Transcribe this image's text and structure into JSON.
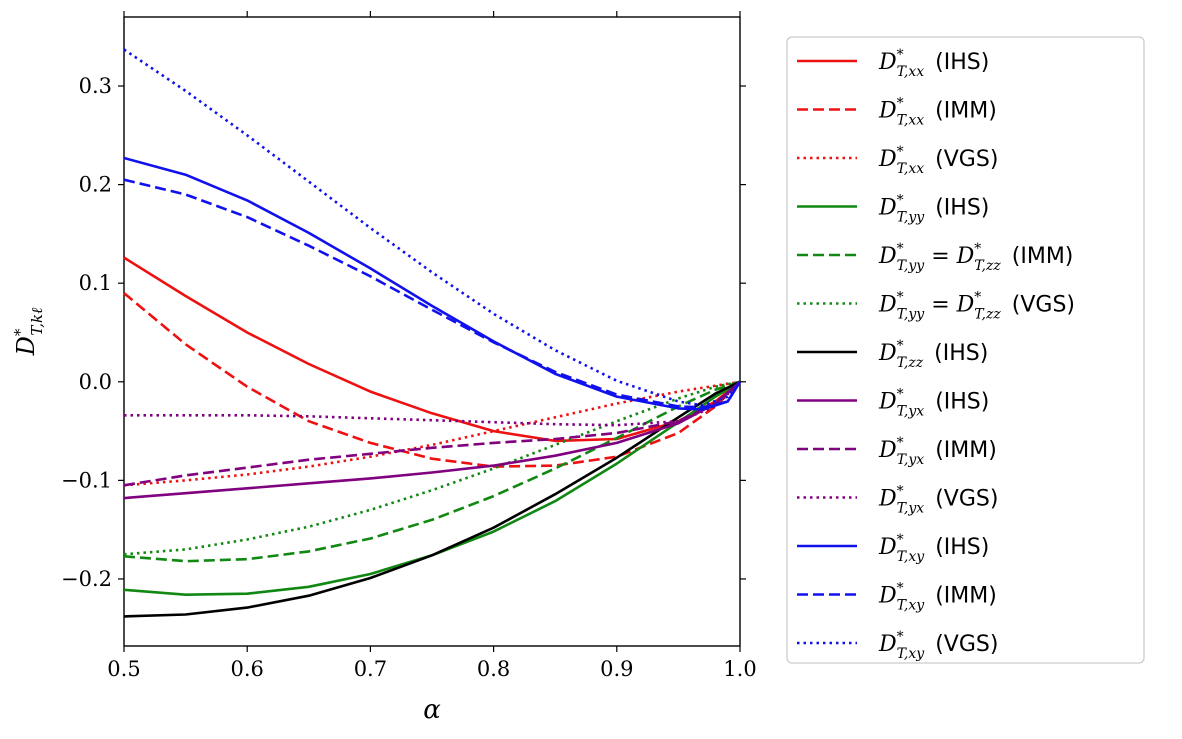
{
  "chart_data": {
    "type": "line",
    "title": "",
    "xlabel": "α",
    "ylabel": "D*T,kℓ",
    "xlim": [
      0.5,
      1.0
    ],
    "ylim": [
      -0.268,
      0.37
    ],
    "x_ticks": [
      "0.5",
      "0.6",
      "0.7",
      "0.8",
      "0.9",
      "1.0"
    ],
    "y_ticks": [
      "−0.2",
      "−0.1",
      "0.0",
      "0.1",
      "0.2",
      "0.3"
    ],
    "legend_position": "outside-right",
    "series": [
      {
        "name": "D*T,xx (IHS)",
        "sym": "D",
        "sub": "T,xx",
        "tag": "(IHS)",
        "color": "#ee1111",
        "dash": "solid",
        "x": [
          0.5,
          0.55,
          0.6,
          0.65,
          0.7,
          0.75,
          0.8,
          0.85,
          0.9,
          0.95,
          0.98,
          1.0
        ],
        "y": [
          0.126,
          0.087,
          0.05,
          0.018,
          -0.01,
          -0.032,
          -0.05,
          -0.06,
          -0.058,
          -0.04,
          -0.02,
          0.0
        ]
      },
      {
        "name": "D*T,xx (IMM)",
        "sym": "D",
        "sub": "T,xx",
        "tag": "(IMM)",
        "color": "#ee1111",
        "dash": "dashed",
        "x": [
          0.5,
          0.55,
          0.6,
          0.65,
          0.7,
          0.75,
          0.8,
          0.85,
          0.9,
          0.95,
          0.98,
          1.0
        ],
        "y": [
          0.09,
          0.038,
          -0.005,
          -0.04,
          -0.062,
          -0.078,
          -0.086,
          -0.085,
          -0.076,
          -0.052,
          -0.025,
          0.0
        ]
      },
      {
        "name": "D*T,xx (VGS)",
        "sym": "D",
        "sub": "T,xx",
        "tag": "(VGS)",
        "color": "#ee1111",
        "dash": "dotted",
        "x": [
          0.5,
          0.55,
          0.6,
          0.65,
          0.7,
          0.75,
          0.8,
          0.85,
          0.9,
          0.95,
          1.0
        ],
        "y": [
          -0.105,
          -0.1,
          -0.094,
          -0.086,
          -0.076,
          -0.064,
          -0.05,
          -0.036,
          -0.022,
          -0.01,
          0.0
        ]
      },
      {
        "name": "D*T,yy (IHS)",
        "sym": "D",
        "sub": "T,yy",
        "tag": "(IHS)",
        "color": "#118811",
        "dash": "solid",
        "x": [
          0.5,
          0.55,
          0.6,
          0.65,
          0.7,
          0.75,
          0.8,
          0.85,
          0.9,
          0.95,
          0.98,
          1.0
        ],
        "y": [
          -0.211,
          -0.216,
          -0.215,
          -0.208,
          -0.195,
          -0.176,
          -0.152,
          -0.121,
          -0.083,
          -0.041,
          -0.015,
          0.0
        ]
      },
      {
        "name": "D*T,yy = D*T,zz (IMM)",
        "sym": "D",
        "sub": "T,yy",
        "eq": true,
        "tag": "(IMM)",
        "color": "#118811",
        "dash": "dashed",
        "x": [
          0.5,
          0.55,
          0.6,
          0.65,
          0.7,
          0.75,
          0.8,
          0.85,
          0.9,
          0.95,
          0.98,
          1.0
        ],
        "y": [
          -0.177,
          -0.182,
          -0.18,
          -0.172,
          -0.159,
          -0.14,
          -0.116,
          -0.088,
          -0.057,
          -0.025,
          -0.008,
          0.0
        ]
      },
      {
        "name": "D*T,yy = D*T,zz (VGS)",
        "sym": "D",
        "sub": "T,yy",
        "eq": true,
        "tag": "(VGS)",
        "color": "#118811",
        "dash": "dotted",
        "x": [
          0.5,
          0.55,
          0.6,
          0.65,
          0.7,
          0.75,
          0.8,
          0.85,
          0.9,
          0.95,
          0.98,
          1.0
        ],
        "y": [
          -0.175,
          -0.17,
          -0.16,
          -0.147,
          -0.13,
          -0.11,
          -0.088,
          -0.064,
          -0.04,
          -0.017,
          -0.005,
          0.0
        ]
      },
      {
        "name": "D*T,zz (IHS)",
        "sym": "D",
        "sub": "T,zz",
        "tag": "(IHS)",
        "color": "#000000",
        "dash": "solid",
        "x": [
          0.5,
          0.55,
          0.6,
          0.65,
          0.7,
          0.75,
          0.8,
          0.85,
          0.9,
          0.95,
          0.98,
          1.0
        ],
        "y": [
          -0.238,
          -0.236,
          -0.229,
          -0.217,
          -0.199,
          -0.176,
          -0.148,
          -0.114,
          -0.077,
          -0.036,
          -0.012,
          0.0
        ]
      },
      {
        "name": "D*T,yx (IHS)",
        "sym": "D",
        "sub": "T,yx",
        "tag": "(IHS)",
        "color": "#800080",
        "dash": "solid",
        "x": [
          0.5,
          0.55,
          0.6,
          0.65,
          0.7,
          0.75,
          0.8,
          0.85,
          0.9,
          0.95,
          0.98,
          1.0
        ],
        "y": [
          -0.118,
          -0.113,
          -0.108,
          -0.103,
          -0.098,
          -0.092,
          -0.085,
          -0.075,
          -0.062,
          -0.042,
          -0.022,
          0.0
        ]
      },
      {
        "name": "D*T,yx (IMM)",
        "sym": "D",
        "sub": "T,yx",
        "tag": "(IMM)",
        "color": "#800080",
        "dash": "dashed",
        "x": [
          0.5,
          0.55,
          0.6,
          0.65,
          0.7,
          0.75,
          0.8,
          0.85,
          0.9,
          0.95,
          0.98,
          1.0
        ],
        "y": [
          -0.105,
          -0.095,
          -0.087,
          -0.079,
          -0.073,
          -0.067,
          -0.062,
          -0.058,
          -0.052,
          -0.04,
          -0.022,
          0.0
        ]
      },
      {
        "name": "D*T,yx (VGS)",
        "sym": "D",
        "sub": "T,yx",
        "tag": "(VGS)",
        "color": "#800080",
        "dash": "dotted",
        "x": [
          0.5,
          0.55,
          0.6,
          0.65,
          0.7,
          0.75,
          0.8,
          0.85,
          0.9,
          0.95,
          0.98,
          1.0
        ],
        "y": [
          -0.034,
          -0.034,
          -0.034,
          -0.035,
          -0.037,
          -0.039,
          -0.041,
          -0.043,
          -0.044,
          -0.04,
          -0.025,
          0.0
        ]
      },
      {
        "name": "D*T,xy (IHS)",
        "sym": "D",
        "sub": "T,xy",
        "tag": "(IHS)",
        "color": "#1111ee",
        "dash": "solid",
        "x": [
          0.5,
          0.55,
          0.6,
          0.65,
          0.7,
          0.75,
          0.8,
          0.85,
          0.9,
          0.95,
          0.97,
          0.99,
          1.0
        ],
        "y": [
          0.227,
          0.21,
          0.184,
          0.151,
          0.115,
          0.077,
          0.041,
          0.008,
          -0.015,
          -0.027,
          -0.028,
          -0.02,
          0.0
        ]
      },
      {
        "name": "D*T,xy (IMM)",
        "sym": "D",
        "sub": "T,xy",
        "tag": "(IMM)",
        "color": "#1111ee",
        "dash": "dashed",
        "x": [
          0.5,
          0.55,
          0.6,
          0.65,
          0.7,
          0.75,
          0.8,
          0.85,
          0.9,
          0.95,
          0.97,
          0.99,
          1.0
        ],
        "y": [
          0.205,
          0.19,
          0.167,
          0.138,
          0.107,
          0.073,
          0.04,
          0.01,
          -0.013,
          -0.025,
          -0.026,
          -0.02,
          0.0
        ]
      },
      {
        "name": "D*T,xy (VGS)",
        "sym": "D",
        "sub": "T,xy",
        "tag": "(VGS)",
        "color": "#1111ee",
        "dash": "dotted",
        "x": [
          0.5,
          0.55,
          0.6,
          0.65,
          0.7,
          0.75,
          0.8,
          0.85,
          0.9,
          0.95,
          0.97,
          0.99,
          1.0
        ],
        "y": [
          0.337,
          0.295,
          0.25,
          0.203,
          0.156,
          0.111,
          0.069,
          0.032,
          0.001,
          -0.02,
          -0.024,
          -0.015,
          0.0
        ]
      }
    ]
  }
}
